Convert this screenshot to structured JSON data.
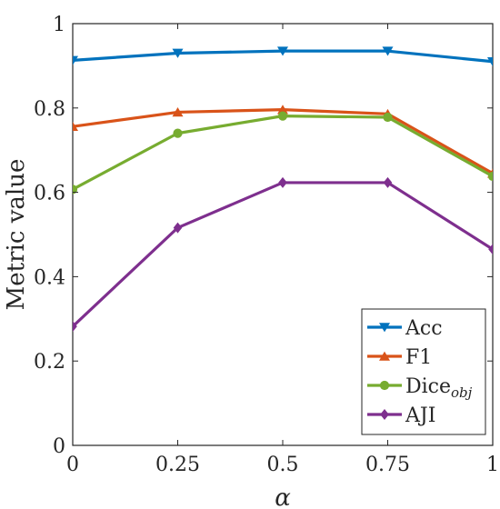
{
  "chart_data": {
    "type": "line",
    "x": [
      0,
      0.25,
      0.5,
      0.75,
      1
    ],
    "x_tick_labels": [
      "0",
      "0.25",
      "0.5",
      "0.75",
      "1"
    ],
    "xlabel": "α",
    "ylabel": "Metric value",
    "xlim": [
      0,
      1
    ],
    "ylim": [
      0,
      1
    ],
    "y_ticks": [
      0,
      0.2,
      0.4,
      0.6,
      0.8,
      1
    ],
    "y_tick_labels": [
      "0",
      "0.2",
      "0.4",
      "0.6",
      "0.8",
      "1"
    ],
    "grid": false,
    "legend_position": "bottom-right",
    "series": [
      {
        "name": "Acc",
        "name_sub": "",
        "color": "#0072BD",
        "marker": "triangle-down",
        "values": [
          0.913,
          0.93,
          0.935,
          0.935,
          0.91
        ]
      },
      {
        "name": "F1",
        "name_sub": "",
        "color": "#D95319",
        "marker": "triangle-up",
        "values": [
          0.756,
          0.79,
          0.796,
          0.786,
          0.645
        ]
      },
      {
        "name": "Dice",
        "name_sub": "obj",
        "color": "#77AC30",
        "marker": "circle",
        "values": [
          0.607,
          0.74,
          0.781,
          0.778,
          0.638
        ]
      },
      {
        "name": "AJI",
        "name_sub": "",
        "color": "#7E2F8E",
        "marker": "diamond",
        "values": [
          0.282,
          0.516,
          0.623,
          0.623,
          0.465
        ]
      }
    ]
  }
}
